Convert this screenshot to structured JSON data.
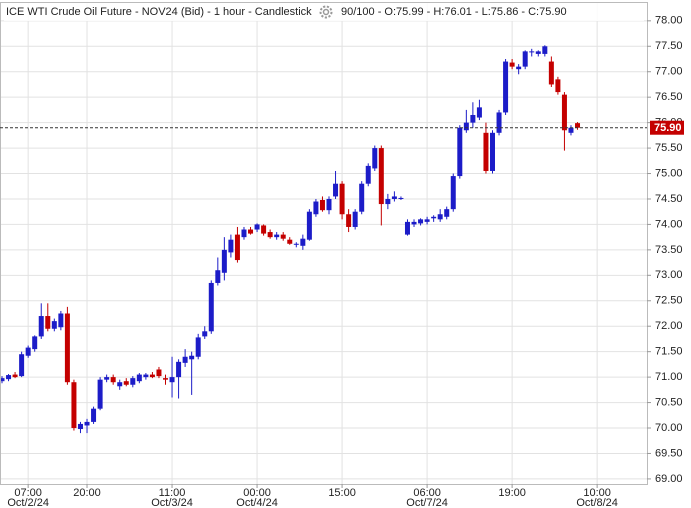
{
  "chart_data": {
    "type": "candlestick",
    "title": "ICE WTI Crude Oil Future - NOV24 (Bid) - 1 hour - Candlestick",
    "info": "90/100 - O:75.99 - H:76.01 - L:75.86 - C:75.90",
    "up_color": "#1c1cc8",
    "down_color": "#c40000",
    "open": [
      70.92,
      70.96,
      71.05,
      71.02,
      71.42,
      71.55,
      71.8,
      72.2,
      71.95,
      71.98,
      72.25,
      70.9,
      69.98,
      70.05,
      70.12,
      70.38,
      70.95,
      71.0,
      70.82,
      70.92,
      70.85,
      70.92,
      71.0,
      71.05,
      71.15,
      70.98,
      70.9,
      71.0,
      71.28,
      71.35,
      71.4,
      71.8,
      71.9,
      72.85,
      73.05,
      73.45,
      73.8,
      73.75,
      73.9,
      73.9,
      73.98,
      73.85,
      73.75,
      73.8,
      73.7,
      73.6,
      73.58,
      73.7,
      74.2,
      74.48,
      74.28,
      74.55,
      74.8,
      74.2,
      73.95,
      74.25,
      74.8,
      75.1,
      75.5,
      74.4,
      74.5,
      74.5,
      73.8,
      74.0,
      74.02,
      74.05,
      74.12,
      74.1,
      74.15,
      74.3,
      74.95,
      75.85,
      76.0,
      76.1,
      75.8,
      75.05,
      75.8,
      76.2,
      77.18,
      77.05,
      77.1,
      77.38,
      77.35,
      77.35,
      77.2,
      76.85,
      76.55,
      75.8,
      75.99
    ],
    "high": [
      71.02,
      71.06,
      71.1,
      71.5,
      71.62,
      71.82,
      72.45,
      72.45,
      72.15,
      72.3,
      72.38,
      70.95,
      70.12,
      70.18,
      70.42,
      71.0,
      71.05,
      71.05,
      70.95,
      70.98,
      71.02,
      71.08,
      71.08,
      71.1,
      71.2,
      71.05,
      71.4,
      71.35,
      71.55,
      71.5,
      71.85,
      72.0,
      72.9,
      73.35,
      73.75,
      73.8,
      73.95,
      73.95,
      73.95,
      74.02,
      74.0,
      73.9,
      73.85,
      73.85,
      73.75,
      73.65,
      73.8,
      74.3,
      74.5,
      74.55,
      74.55,
      75.05,
      74.85,
      74.3,
      74.3,
      74.85,
      75.2,
      75.55,
      75.55,
      74.6,
      74.65,
      74.55,
      74.1,
      74.1,
      74.12,
      74.15,
      74.18,
      74.3,
      74.35,
      75.0,
      75.95,
      76.25,
      76.4,
      76.45,
      76.0,
      75.85,
      76.25,
      77.25,
      77.25,
      77.15,
      77.42,
      77.45,
      77.42,
      77.52,
      77.3,
      76.9,
      76.6,
      75.95,
      76.01
    ],
    "low": [
      70.88,
      70.92,
      70.98,
      71.0,
      71.38,
      71.5,
      71.75,
      71.9,
      71.9,
      71.92,
      70.85,
      69.95,
      69.9,
      69.9,
      70.08,
      70.35,
      70.9,
      70.85,
      70.75,
      70.82,
      70.8,
      70.88,
      70.95,
      70.98,
      70.98,
      70.85,
      70.6,
      70.58,
      71.2,
      70.65,
      71.35,
      71.75,
      71.85,
      72.8,
      72.9,
      73.35,
      73.25,
      73.7,
      73.8,
      73.85,
      73.78,
      73.72,
      73.7,
      73.68,
      73.6,
      73.55,
      73.5,
      73.68,
      74.15,
      74.25,
      74.2,
      74.5,
      74.1,
      73.85,
      73.9,
      74.2,
      74.75,
      75.05,
      73.98,
      74.3,
      74.45,
      74.48,
      73.78,
      73.95,
      73.98,
      74.0,
      74.05,
      74.05,
      74.1,
      74.25,
      74.9,
      75.8,
      75.9,
      76.05,
      75.0,
      75.0,
      75.75,
      76.15,
      77.05,
      76.95,
      77.05,
      77.3,
      77.3,
      77.3,
      76.7,
      76.55,
      75.45,
      75.75,
      75.86
    ],
    "close": [
      70.98,
      71.04,
      71.0,
      71.45,
      71.58,
      71.8,
      72.2,
      71.95,
      72.1,
      72.25,
      70.9,
      70.0,
      70.08,
      70.12,
      70.38,
      70.95,
      71.0,
      70.9,
      70.9,
      70.85,
      70.98,
      71.05,
      71.05,
      71.0,
      71.02,
      70.95,
      71.0,
      71.3,
      71.4,
      71.42,
      71.78,
      71.9,
      72.85,
      73.1,
      73.5,
      73.7,
      73.3,
      73.9,
      73.82,
      74.0,
      73.82,
      73.75,
      73.8,
      73.72,
      73.62,
      73.62,
      73.72,
      74.25,
      74.45,
      74.28,
      74.5,
      74.8,
      74.2,
      73.95,
      74.25,
      74.8,
      75.15,
      75.5,
      74.4,
      74.5,
      74.55,
      74.52,
      74.05,
      74.05,
      74.1,
      74.1,
      74.15,
      74.2,
      74.3,
      74.95,
      75.9,
      76.0,
      76.15,
      76.3,
      75.05,
      75.8,
      76.2,
      77.2,
      77.1,
      77.1,
      77.4,
      77.4,
      77.4,
      77.5,
      76.75,
      76.6,
      75.85,
      75.9,
      75.9
    ],
    "last_price": {
      "value": 75.9,
      "label": "75.90"
    },
    "ylim": [
      68.9,
      78.37
    ],
    "yticks": [
      {
        "value": 69,
        "label": "69.00"
      },
      {
        "value": 69.5,
        "label": "69.50"
      },
      {
        "value": 70,
        "label": "70.00"
      },
      {
        "value": 70.5,
        "label": "70.50"
      },
      {
        "value": 71,
        "label": "71.00"
      },
      {
        "value": 71.5,
        "label": "71.50"
      },
      {
        "value": 72,
        "label": "72.00"
      },
      {
        "value": 72.5,
        "label": "72.50"
      },
      {
        "value": 73,
        "label": "73.00"
      },
      {
        "value": 73.5,
        "label": "73.50"
      },
      {
        "value": 74,
        "label": "74.00"
      },
      {
        "value": 74.5,
        "label": "74.50"
      },
      {
        "value": 75,
        "label": "75.00"
      },
      {
        "value": 75.5,
        "label": "75.50"
      },
      {
        "value": 76,
        "label": "76.00"
      },
      {
        "value": 76.5,
        "label": "76.50"
      },
      {
        "value": 77,
        "label": "77.00"
      },
      {
        "value": 77.5,
        "label": "77.50"
      },
      {
        "value": 78,
        "label": "78.00"
      }
    ],
    "xticks": [
      {
        "value": 4,
        "label": "07:00",
        "sublabel": "Oct/2/24"
      },
      {
        "value": 13,
        "label": "20:00"
      },
      {
        "value": 26,
        "label": "11:00",
        "sublabel": "Oct/3/24"
      },
      {
        "value": 39,
        "label": "00:00",
        "sublabel": "Oct/4/24"
      },
      {
        "value": 52,
        "label": "15:00"
      },
      {
        "value": 65,
        "label": "06:00",
        "sublabel": "Oct/7/24"
      },
      {
        "value": 78,
        "label": "19:00"
      },
      {
        "value": 91,
        "label": "10:00",
        "sublabel": "Oct/8/24"
      }
    ],
    "grid": true
  }
}
